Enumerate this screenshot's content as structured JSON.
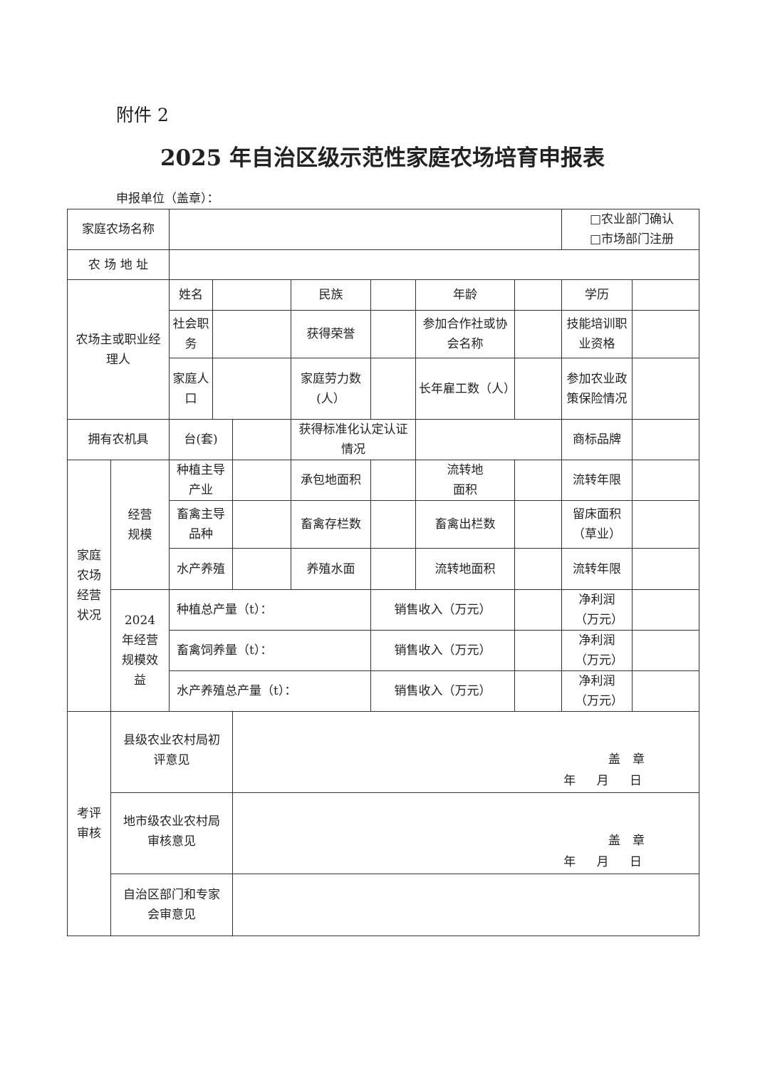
{
  "header": {
    "attachment": "附件 2",
    "title": "2025 年自治区级示范性家庭农场培育申报表",
    "applicant_unit": "申报单位（盖章）："
  },
  "basic": {
    "farm_name_label": "家庭农场名称",
    "registration_options": [
      "□农业部门确认",
      "□市场部门注册"
    ],
    "address_label": "农 场 地 址"
  },
  "owner": {
    "section_label": "农场主或职业经理人",
    "rows": [
      [
        "姓名",
        "民族",
        "年龄",
        "学历"
      ],
      [
        "社会职务",
        "获得荣誉",
        "参加合作社或协会名称",
        "技能培训职业资格"
      ],
      [
        "家庭人口",
        "家庭劳力数(人）",
        "长年雇工数（人）",
        "参加农业政策保险情况"
      ]
    ]
  },
  "machinery": {
    "label": "拥有农机具",
    "unit": "台(套)",
    "certification_label": "获得标准化认定认证情况",
    "brand_label": "商标品牌"
  },
  "operation": {
    "section_label": "家庭农场经营状况",
    "scale_label": "经营规模",
    "scale_rows": [
      [
        "种植主导产业",
        "承包地面积",
        "流转地面积",
        "流转年限"
      ],
      [
        "畜禽主导品种",
        "畜禽存栏数",
        "畜禽出栏数",
        "留床面积（草业）"
      ],
      [
        "水产养殖",
        "养殖水面",
        "流转地面积",
        "流转年限"
      ]
    ],
    "benefit_label": "2024 年经营规模效益",
    "benefit_rows": [
      [
        "种植总产量（t）：",
        "销售收入（万元）",
        "净利润（万元）"
      ],
      [
        "畜禽饲养量（t）：",
        "销售收入（万元）",
        "净利润（万元）"
      ],
      [
        "水产养殖总产量（t）：",
        "销售收入（万元）",
        "净利润（万元）"
      ]
    ]
  },
  "review": {
    "section_label": "考评审核",
    "rows": [
      {
        "label": "县级农业农村局初评意见",
        "stamp": "盖　章",
        "date": "年 月 日"
      },
      {
        "label": "地市级农业农村局审核意见",
        "stamp": "盖　章",
        "date": "年 月 日"
      },
      {
        "label": "自治区部门和专家会审意见"
      }
    ]
  }
}
